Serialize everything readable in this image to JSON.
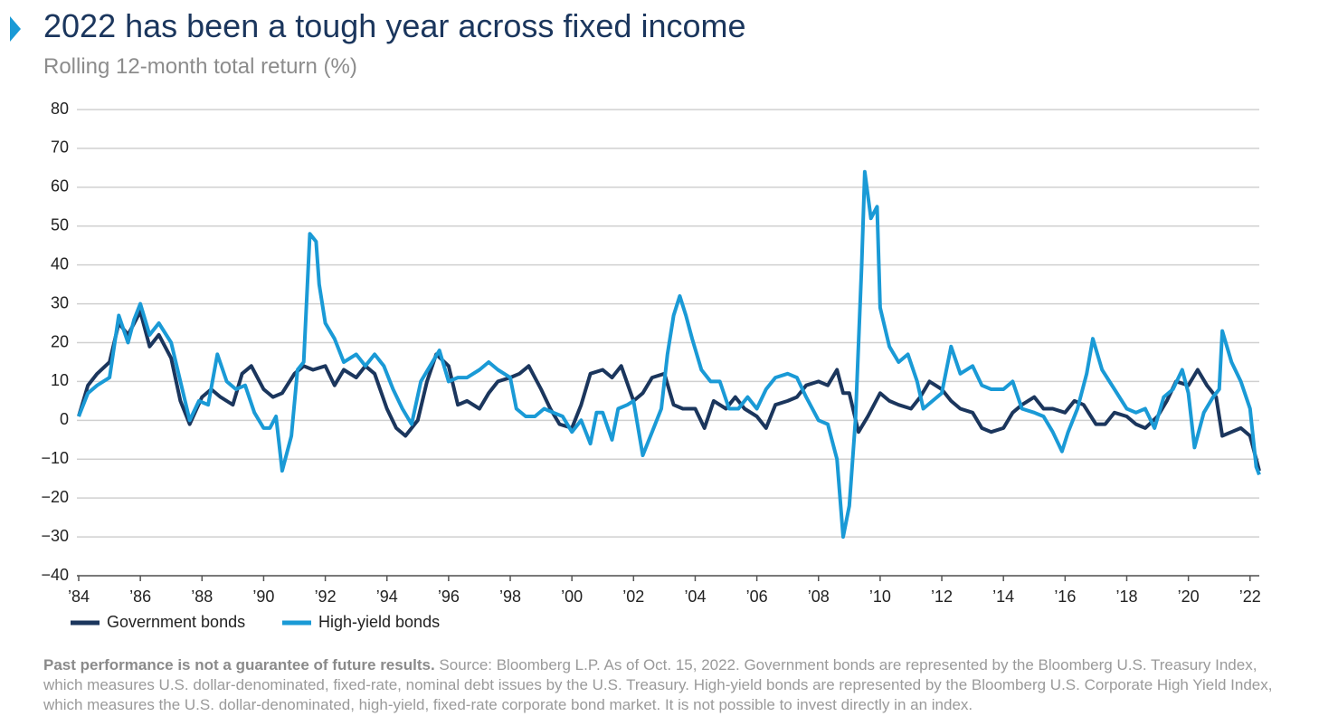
{
  "chart_data": {
    "type": "line",
    "title": "2022 has been a tough year across fixed income",
    "subtitle": "Rolling 12-month total return (%)",
    "footnote_bold": "Past performance is not a guarantee of future results.",
    "footnote": "Source: Bloomberg L.P. As of Oct. 15, 2022. Government bonds are represented by the Bloomberg U.S. Treasury Index, which measures U.S. dollar-denominated, fixed-rate, nominal debt issues by the U.S. Treasury. High-yield bonds are represented by the Bloomberg U.S. Corporate High Yield Index, which measures the U.S. dollar-denominated, high-yield, fixed-rate corporate bond market. It is not possible to invest directly in an index.",
    "xlim": [
      1984,
      2022.3
    ],
    "xticks": [
      {
        "value": 1984,
        "label": "’84"
      },
      {
        "value": 1986,
        "label": "’86"
      },
      {
        "value": 1988,
        "label": "’88"
      },
      {
        "value": 1990,
        "label": "’90"
      },
      {
        "value": 1992,
        "label": "’92"
      },
      {
        "value": 1994,
        "label": "’94"
      },
      {
        "value": 1996,
        "label": "’96"
      },
      {
        "value": 1998,
        "label": "’98"
      },
      {
        "value": 2000,
        "label": "’00"
      },
      {
        "value": 2002,
        "label": "’02"
      },
      {
        "value": 2004,
        "label": "’04"
      },
      {
        "value": 2006,
        "label": "’06"
      },
      {
        "value": 2008,
        "label": "’08"
      },
      {
        "value": 2010,
        "label": "’10"
      },
      {
        "value": 2012,
        "label": "’12"
      },
      {
        "value": 2014,
        "label": "’14"
      },
      {
        "value": 2016,
        "label": "’16"
      },
      {
        "value": 2018,
        "label": "’18"
      },
      {
        "value": 2020,
        "label": "’20"
      },
      {
        "value": 2022,
        "label": "’22"
      }
    ],
    "ylim": [
      -40,
      80
    ],
    "yticks": [
      {
        "value": -40,
        "label": "−40"
      },
      {
        "value": -30,
        "label": "−30"
      },
      {
        "value": -20,
        "label": "−20"
      },
      {
        "value": -10,
        "label": "−10"
      },
      0,
      10,
      20,
      30,
      40,
      50,
      60,
      70,
      80
    ],
    "grid": true,
    "series": [
      {
        "name": "Government bonds",
        "color": "#1b365d",
        "x": [
          1984.0,
          1984.3,
          1984.6,
          1985.0,
          1985.3,
          1985.6,
          1986.0,
          1986.3,
          1986.6,
          1987.0,
          1987.3,
          1987.6,
          1988.0,
          1988.3,
          1988.6,
          1989.0,
          1989.3,
          1989.6,
          1990.0,
          1990.3,
          1990.6,
          1991.0,
          1991.3,
          1991.6,
          1992.0,
          1992.3,
          1992.6,
          1993.0,
          1993.3,
          1993.6,
          1994.0,
          1994.3,
          1994.6,
          1995.0,
          1995.3,
          1995.6,
          1996.0,
          1996.3,
          1996.6,
          1997.0,
          1997.3,
          1997.6,
          1998.0,
          1998.3,
          1998.6,
          1999.0,
          1999.3,
          1999.6,
          2000.0,
          2000.3,
          2000.6,
          2001.0,
          2001.3,
          2001.6,
          2002.0,
          2002.3,
          2002.6,
          2003.0,
          2003.3,
          2003.6,
          2004.0,
          2004.3,
          2004.6,
          2005.0,
          2005.3,
          2005.6,
          2006.0,
          2006.3,
          2006.6,
          2007.0,
          2007.3,
          2007.6,
          2008.0,
          2008.3,
          2008.6,
          2008.8,
          2009.0,
          2009.3,
          2009.6,
          2010.0,
          2010.3,
          2010.6,
          2011.0,
          2011.3,
          2011.6,
          2012.0,
          2012.3,
          2012.6,
          2013.0,
          2013.3,
          2013.6,
          2014.0,
          2014.3,
          2014.6,
          2015.0,
          2015.3,
          2015.6,
          2016.0,
          2016.3,
          2016.6,
          2017.0,
          2017.3,
          2017.6,
          2018.0,
          2018.3,
          2018.6,
          2019.0,
          2019.3,
          2019.6,
          2020.0,
          2020.3,
          2020.6,
          2020.9,
          2021.1,
          2021.4,
          2021.7,
          2022.0,
          2022.3
        ],
        "values": [
          1,
          9,
          12,
          15,
          25,
          22,
          28,
          19,
          22,
          16,
          5,
          -1,
          6,
          8,
          6,
          4,
          12,
          14,
          8,
          6,
          7,
          12,
          14,
          13,
          14,
          9,
          13,
          11,
          14,
          12,
          3,
          -2,
          -4,
          0,
          10,
          17,
          14,
          4,
          5,
          3,
          7,
          10,
          11,
          12,
          14,
          8,
          3,
          -1,
          -2,
          4,
          12,
          13,
          11,
          14,
          5,
          7,
          11,
          12,
          4,
          3,
          3,
          -2,
          5,
          3,
          6,
          3,
          1,
          -2,
          4,
          5,
          6,
          9,
          10,
          9,
          13,
          7,
          7,
          -3,
          1,
          7,
          5,
          4,
          3,
          6,
          10,
          8,
          5,
          3,
          2,
          -2,
          -3,
          -2,
          2,
          4,
          6,
          3,
          3,
          2,
          5,
          4,
          -1,
          -1,
          2,
          1,
          -1,
          -2,
          1,
          5,
          10,
          9,
          13,
          9,
          6,
          -4,
          -3,
          -2,
          -4,
          -13
        ]
      },
      {
        "name": "High-yield bonds",
        "color": "#1a9ad6",
        "x": [
          1984.0,
          1984.3,
          1984.6,
          1985.0,
          1985.3,
          1985.6,
          1985.8,
          1986.0,
          1986.3,
          1986.6,
          1987.0,
          1987.3,
          1987.6,
          1987.9,
          1988.2,
          1988.5,
          1988.8,
          1989.1,
          1989.4,
          1989.7,
          1990.0,
          1990.2,
          1990.4,
          1990.6,
          1990.9,
          1991.1,
          1991.3,
          1991.5,
          1991.7,
          1991.8,
          1992.0,
          1992.3,
          1992.6,
          1993.0,
          1993.3,
          1993.6,
          1993.9,
          1994.2,
          1994.5,
          1994.8,
          1995.1,
          1995.4,
          1995.7,
          1996.0,
          1996.3,
          1996.6,
          1997.0,
          1997.3,
          1997.6,
          1998.0,
          1998.2,
          1998.5,
          1998.8,
          1999.1,
          1999.4,
          1999.7,
          2000.0,
          2000.3,
          2000.6,
          2000.8,
          2001.0,
          2001.3,
          2001.5,
          2001.8,
          2002.0,
          2002.3,
          2002.6,
          2002.9,
          2003.1,
          2003.3,
          2003.5,
          2003.7,
          2003.9,
          2004.2,
          2004.5,
          2004.8,
          2005.1,
          2005.4,
          2005.7,
          2006.0,
          2006.3,
          2006.6,
          2007.0,
          2007.3,
          2007.6,
          2008.0,
          2008.3,
          2008.6,
          2008.8,
          2009.0,
          2009.2,
          2009.4,
          2009.5,
          2009.7,
          2009.9,
          2010.0,
          2010.3,
          2010.6,
          2010.9,
          2011.2,
          2011.4,
          2011.7,
          2012.0,
          2012.3,
          2012.6,
          2013.0,
          2013.3,
          2013.6,
          2014.0,
          2014.3,
          2014.6,
          2015.0,
          2015.3,
          2015.6,
          2015.9,
          2016.1,
          2016.4,
          2016.7,
          2016.9,
          2017.2,
          2017.6,
          2018.0,
          2018.3,
          2018.6,
          2018.9,
          2019.2,
          2019.5,
          2019.8,
          2020.0,
          2020.2,
          2020.5,
          2020.8,
          2021.0,
          2021.1,
          2021.4,
          2021.7,
          2022.0,
          2022.2,
          2022.3
        ],
        "values": [
          1,
          7,
          9,
          11,
          27,
          20,
          26,
          30,
          22,
          25,
          20,
          10,
          0,
          5,
          4,
          17,
          10,
          8,
          9,
          2,
          -2,
          -2,
          1,
          -13,
          -4,
          13,
          15,
          48,
          46,
          35,
          25,
          21,
          15,
          17,
          14,
          17,
          14,
          8,
          3,
          -1,
          10,
          14,
          18,
          10,
          11,
          11,
          13,
          15,
          13,
          11,
          3,
          1,
          1,
          3,
          2,
          1,
          -3,
          0,
          -6,
          2,
          2,
          -5,
          3,
          4,
          5,
          -9,
          -3,
          3,
          17,
          27,
          32,
          27,
          21,
          13,
          10,
          10,
          3,
          3,
          6,
          3,
          8,
          11,
          12,
          11,
          6,
          0,
          -1,
          -10,
          -30,
          -22,
          0,
          40,
          64,
          52,
          55,
          29,
          19,
          15,
          17,
          10,
          3,
          5,
          7,
          19,
          12,
          14,
          9,
          8,
          8,
          10,
          3,
          2,
          1,
          -3,
          -8,
          -3,
          3,
          12,
          21,
          13,
          8,
          3,
          2,
          3,
          -2,
          6,
          8,
          13,
          7,
          -7,
          2,
          6,
          8,
          23,
          15,
          10,
          3,
          -12,
          -14
        ]
      }
    ]
  }
}
